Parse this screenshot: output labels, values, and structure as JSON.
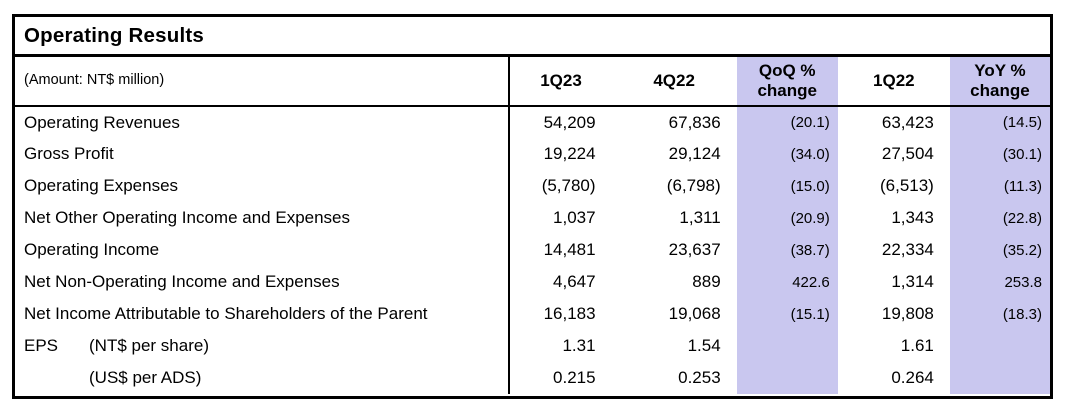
{
  "title": "Operating Results",
  "unit_note": "(Amount: NT$ million)",
  "columns": [
    {
      "key": "1q23",
      "label": "1Q23",
      "highlight": false
    },
    {
      "key": "4q22",
      "label": "4Q22",
      "highlight": false
    },
    {
      "key": "qoq-change",
      "label": "QoQ % change",
      "highlight": true
    },
    {
      "key": "1q22",
      "label": "1Q22",
      "highlight": false
    },
    {
      "key": "yoy-change",
      "label": "YoY % change",
      "highlight": true
    }
  ],
  "rows": [
    {
      "label": "Operating Revenues",
      "values": [
        "54,209",
        "67,836",
        "(20.1)",
        "63,423",
        "(14.5)"
      ]
    },
    {
      "label": "Gross Profit",
      "values": [
        "19,224",
        "29,124",
        "(34.0)",
        "27,504",
        "(30.1)"
      ]
    },
    {
      "label": "Operating Expenses",
      "values": [
        "(5,780)",
        "(6,798)",
        "(15.0)",
        "(6,513)",
        "(11.3)"
      ]
    },
    {
      "label": "Net Other Operating Income and Expenses",
      "values": [
        "1,037",
        "1,311",
        "(20.9)",
        "1,343",
        "(22.8)"
      ]
    },
    {
      "label": "Operating Income",
      "values": [
        "14,481",
        "23,637",
        "(38.7)",
        "22,334",
        "(35.2)"
      ]
    },
    {
      "label": "Net Non-Operating Income and Expenses",
      "values": [
        "4,647",
        "889",
        "422.6",
        "1,314",
        "253.8"
      ]
    },
    {
      "label": "Net Income Attributable to Shareholders of the Parent",
      "values": [
        "16,183",
        "19,068",
        "(15.1)",
        "19,808",
        "(18.3)"
      ]
    },
    {
      "prefix": "EPS",
      "label": "(NT$ per share)",
      "values": [
        "1.31",
        "1.54",
        "",
        "1.61",
        ""
      ]
    },
    {
      "prefix": "",
      "label": "(US$ per ADS)",
      "values": [
        "0.215",
        "0.253",
        "",
        "0.264",
        ""
      ]
    }
  ],
  "colors": {
    "highlight_column": "#c9c7ef",
    "border": "#000000",
    "text": "#000000",
    "background": "#ffffff"
  }
}
